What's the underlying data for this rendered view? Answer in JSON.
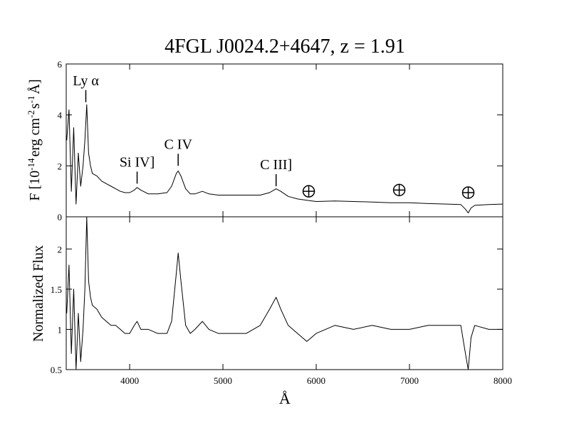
{
  "chart_data": [
    {
      "type": "line",
      "title": "4FGL J0024.2+4647, z = 1.91",
      "ylabel_parts": [
        {
          "text": "F [10"
        },
        {
          "text": "-14",
          "sup": true
        },
        {
          "text": "erg cm"
        },
        {
          "text": "-2",
          "sup": true
        },
        {
          "text": "s"
        },
        {
          "text": "-1",
          "sup": true
        },
        {
          "text": "Å]"
        }
      ],
      "color": "#000000",
      "x": [
        3325,
        3350,
        3375,
        3400,
        3425,
        3450,
        3475,
        3500,
        3520,
        3540,
        3560,
        3580,
        3600,
        3650,
        3700,
        3750,
        3800,
        3850,
        3900,
        3950,
        4000,
        4050,
        4080,
        4120,
        4200,
        4300,
        4400,
        4450,
        4500,
        4520,
        4550,
        4600,
        4650,
        4700,
        4780,
        4850,
        4950,
        5100,
        5250,
        5400,
        5500,
        5570,
        5620,
        5700,
        5800,
        5900,
        6000,
        6200,
        6400,
        6600,
        6800,
        7000,
        7200,
        7400,
        7550,
        7600,
        7630,
        7660,
        7700,
        7850,
        8000
      ],
      "values": [
        3.0,
        4.2,
        1.0,
        3.5,
        0.5,
        2.5,
        1.2,
        2.0,
        3.0,
        4.4,
        2.5,
        2.0,
        1.7,
        1.6,
        1.4,
        1.3,
        1.2,
        1.1,
        1.0,
        0.95,
        0.95,
        1.05,
        1.15,
        1.05,
        0.9,
        0.9,
        0.95,
        1.2,
        1.7,
        1.8,
        1.6,
        1.1,
        0.9,
        0.9,
        1.0,
        0.9,
        0.85,
        0.85,
        0.85,
        0.85,
        0.95,
        1.1,
        1.0,
        0.8,
        0.7,
        0.65,
        0.6,
        0.62,
        0.6,
        0.58,
        0.55,
        0.55,
        0.52,
        0.5,
        0.48,
        0.3,
        0.15,
        0.35,
        0.45,
        0.48,
        0.5
      ],
      "xlim": [
        3320,
        8000
      ],
      "xticks": [
        4000,
        5000,
        6000,
        7000,
        8000
      ],
      "ylim": [
        0,
        6
      ],
      "yticks": [
        0,
        2,
        4,
        6
      ],
      "annotations": [
        {
          "text": "Ly α",
          "x": 3530,
          "y": 4.5
        },
        {
          "text": "Si IV]",
          "x": 4080,
          "y": 1.3
        },
        {
          "text": "C IV",
          "x": 4520,
          "y": 2.0
        },
        {
          "text": "C III]",
          "x": 5570,
          "y": 1.2
        }
      ],
      "telluric": [
        {
          "x": 5920,
          "y": 1.0
        },
        {
          "x": 6890,
          "y": 1.05
        },
        {
          "x": 7630,
          "y": 0.95
        }
      ]
    },
    {
      "type": "line",
      "ylabel": "Normalized Flux",
      "xlabel": "Å",
      "color": "#000000",
      "x": [
        3325,
        3350,
        3375,
        3400,
        3425,
        3450,
        3475,
        3500,
        3520,
        3540,
        3560,
        3580,
        3600,
        3650,
        3700,
        3750,
        3800,
        3850,
        3900,
        3950,
        4000,
        4050,
        4080,
        4120,
        4200,
        4300,
        4400,
        4450,
        4500,
        4520,
        4550,
        4600,
        4650,
        4700,
        4780,
        4850,
        4950,
        5100,
        5250,
        5400,
        5500,
        5570,
        5620,
        5700,
        5800,
        5900,
        6000,
        6200,
        6400,
        6600,
        6800,
        7000,
        7200,
        7400,
        7550,
        7600,
        7630,
        7660,
        7700,
        7850,
        8000
      ],
      "values": [
        1.2,
        1.8,
        0.7,
        1.5,
        0.5,
        1.2,
        0.6,
        1.0,
        1.5,
        2.4,
        1.6,
        1.4,
        1.3,
        1.25,
        1.15,
        1.1,
        1.05,
        1.05,
        1.0,
        0.95,
        0.95,
        1.05,
        1.1,
        1.0,
        1.0,
        0.95,
        0.95,
        1.1,
        1.7,
        1.95,
        1.6,
        1.05,
        0.95,
        1.0,
        1.1,
        1.0,
        0.95,
        0.95,
        0.95,
        1.05,
        1.25,
        1.4,
        1.25,
        1.05,
        0.95,
        0.85,
        0.95,
        1.05,
        1.0,
        1.05,
        1.0,
        1.0,
        1.05,
        1.05,
        1.05,
        0.7,
        0.5,
        0.9,
        1.05,
        1.0,
        1.0
      ],
      "xlim": [
        3320,
        8000
      ],
      "xticks": [
        4000,
        5000,
        6000,
        7000,
        8000
      ],
      "ylim": [
        0.5,
        2.4
      ],
      "yticks": [
        0.5,
        1,
        1.5,
        2
      ]
    }
  ]
}
